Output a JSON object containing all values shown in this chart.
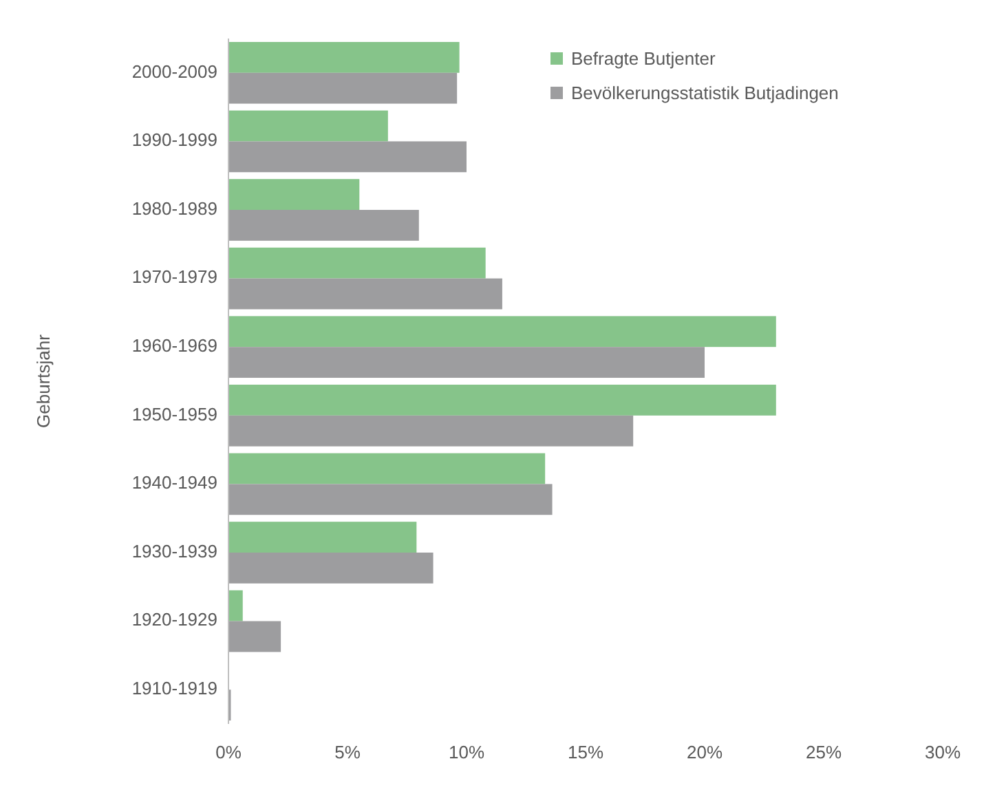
{
  "chart_data": {
    "type": "bar",
    "orientation": "horizontal",
    "ylabel": "Geburtsjahr",
    "categories": [
      "2000-2009",
      "1990-1999",
      "1980-1989",
      "1970-1979",
      "1960-1969",
      "1950-1959",
      "1940-1949",
      "1930-1939",
      "1920-1929",
      "1910-1919"
    ],
    "series": [
      {
        "name": "Befragte Butjenter",
        "color": "#86c48a",
        "values": [
          9.7,
          6.7,
          5.5,
          10.8,
          23.0,
          23.0,
          13.3,
          7.9,
          0.6,
          0
        ]
      },
      {
        "name": "Bevölkerungsstatistik Butjadingen",
        "color": "#9d9d9f",
        "values": [
          9.6,
          10.0,
          8.0,
          11.5,
          20.0,
          17.0,
          13.6,
          8.6,
          2.2,
          0.1
        ]
      }
    ],
    "xlim": [
      0,
      30
    ],
    "xticks": [
      {
        "value": 0,
        "label": "0%"
      },
      {
        "value": 5,
        "label": "5%"
      },
      {
        "value": 10,
        "label": "10%"
      },
      {
        "value": 15,
        "label": "15%"
      },
      {
        "value": 20,
        "label": "20%"
      },
      {
        "value": 25,
        "label": "25%"
      },
      {
        "value": 30,
        "label": "30%"
      }
    ],
    "legend": "top right",
    "grid": false
  }
}
